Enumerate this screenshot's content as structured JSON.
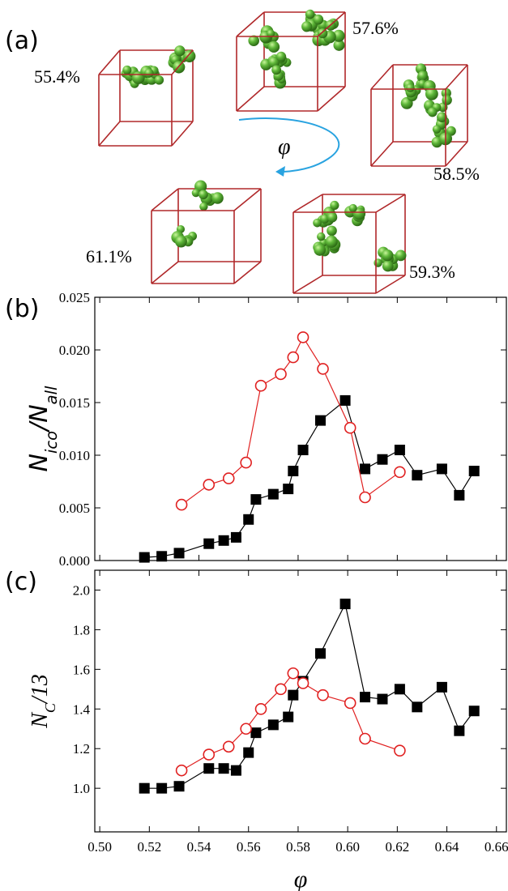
{
  "panel_a": {
    "label": "(a)",
    "arrow_label": "φ",
    "snapshots": [
      {
        "label": "55.4%"
      },
      {
        "label": "57.6%"
      },
      {
        "label": "58.5%"
      },
      {
        "label": "61.1%"
      },
      {
        "label": "59.3%"
      }
    ]
  },
  "chart_data": [
    {
      "type": "line",
      "panel_label": "(b)",
      "ylabel_parts": [
        "N",
        "ico",
        "/N",
        "all"
      ],
      "xlim": [
        0.498,
        0.664
      ],
      "ylim": [
        0,
        0.025
      ],
      "xticks": [
        0.5,
        0.52,
        0.54,
        0.56,
        0.58,
        0.6,
        0.62,
        0.64,
        0.66
      ],
      "yticks": [
        {
          "value": 0,
          "label": "0.000"
        },
        {
          "value": 0.005,
          "label": "0.005"
        },
        {
          "value": 0.01,
          "label": "0.010"
        },
        {
          "value": 0.015,
          "label": "0.015"
        },
        {
          "value": 0.02,
          "label": "0.020"
        },
        {
          "value": 0.025,
          "label": "0.025"
        }
      ],
      "series": [
        {
          "color": "#000000",
          "marker": "square",
          "x": [
            0.518,
            0.525,
            0.532,
            0.544,
            0.55,
            0.555,
            0.56,
            0.563,
            0.57,
            0.576,
            0.578,
            0.582,
            0.589,
            0.599,
            0.607,
            0.614,
            0.621,
            0.628,
            0.638,
            0.645,
            0.651
          ],
          "values": [
            0.0003,
            0.0004,
            0.0007,
            0.0016,
            0.0019,
            0.0022,
            0.0039,
            0.0058,
            0.0063,
            0.0068,
            0.0085,
            0.0105,
            0.0133,
            0.0152,
            0.0087,
            0.0096,
            0.0105,
            0.0081,
            0.0087,
            0.0062,
            0.0085
          ]
        },
        {
          "color": "#e02020",
          "marker": "circle",
          "x": [
            0.533,
            0.544,
            0.552,
            0.559,
            0.565,
            0.573,
            0.578,
            0.582,
            0.59,
            0.601,
            0.607,
            0.621
          ],
          "values": [
            0.0053,
            0.0072,
            0.0078,
            0.0093,
            0.0166,
            0.0177,
            0.0193,
            0.0212,
            0.0182,
            0.0126,
            0.006,
            0.0084
          ]
        }
      ]
    },
    {
      "type": "line",
      "panel_label": "(c)",
      "ylabel_parts": [
        "N",
        "C",
        "/13"
      ],
      "xlabel": "φ",
      "xlim": [
        0.498,
        0.664
      ],
      "ylim": [
        0.78,
        2.1
      ],
      "xticks": [
        {
          "value": 0.5,
          "label": "0.50"
        },
        {
          "value": 0.52,
          "label": "0.52"
        },
        {
          "value": 0.54,
          "label": "0.54"
        },
        {
          "value": 0.56,
          "label": "0.56"
        },
        {
          "value": 0.58,
          "label": "0.58"
        },
        {
          "value": 0.6,
          "label": "0.60"
        },
        {
          "value": 0.62,
          "label": "0.62"
        },
        {
          "value": 0.64,
          "label": "0.64"
        },
        {
          "value": 0.66,
          "label": "0.66"
        }
      ],
      "yticks": [
        {
          "value": 1,
          "label": "1.0"
        },
        {
          "value": 1.2,
          "label": "1.2"
        },
        {
          "value": 1.4,
          "label": "1.4"
        },
        {
          "value": 1.6,
          "label": "1.6"
        },
        {
          "value": 1.8,
          "label": "1.8"
        },
        {
          "value": 2,
          "label": "2.0"
        }
      ],
      "series": [
        {
          "color": "#000000",
          "marker": "square",
          "x": [
            0.518,
            0.525,
            0.532,
            0.544,
            0.55,
            0.555,
            0.56,
            0.563,
            0.57,
            0.576,
            0.578,
            0.582,
            0.589,
            0.599,
            0.607,
            0.614,
            0.621,
            0.628,
            0.638,
            0.645,
            0.651
          ],
          "values": [
            1.0,
            1.0,
            1.01,
            1.1,
            1.1,
            1.09,
            1.18,
            1.28,
            1.32,
            1.36,
            1.47,
            1.54,
            1.68,
            1.93,
            1.46,
            1.45,
            1.5,
            1.41,
            1.51,
            1.29,
            1.39
          ]
        },
        {
          "color": "#e02020",
          "marker": "circle",
          "x": [
            0.533,
            0.544,
            0.552,
            0.559,
            0.565,
            0.573,
            0.578,
            0.582,
            0.59,
            0.601,
            0.607,
            0.621
          ],
          "values": [
            1.09,
            1.17,
            1.21,
            1.3,
            1.4,
            1.5,
            1.58,
            1.53,
            1.47,
            1.43,
            1.25,
            1.19
          ]
        }
      ]
    }
  ]
}
